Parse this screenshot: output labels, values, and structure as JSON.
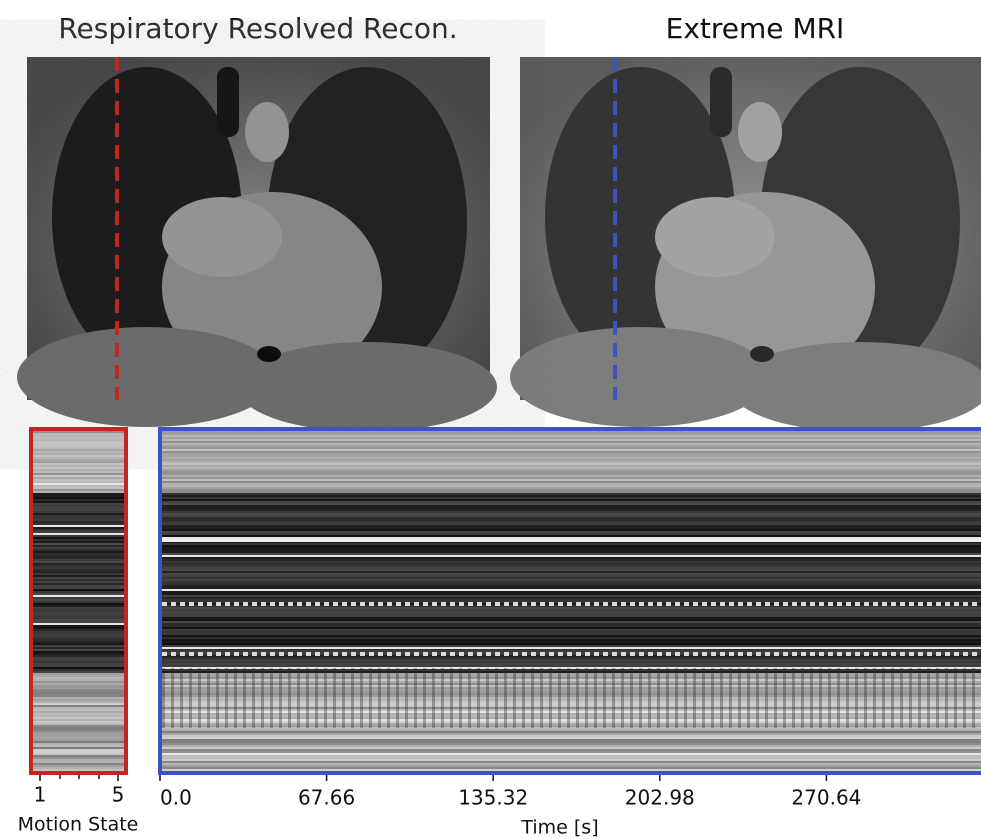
{
  "panels": {
    "left_title": "Respiratory Resolved Recon.",
    "right_title": "Extreme MRI",
    "motion": {
      "ticks": [
        "1",
        "5"
      ],
      "label": "Motion State"
    },
    "time": {
      "ticks": [
        "0.0",
        "67.66",
        "135.32",
        "202.98",
        "270.64"
      ],
      "label": "Time [s]"
    }
  }
}
